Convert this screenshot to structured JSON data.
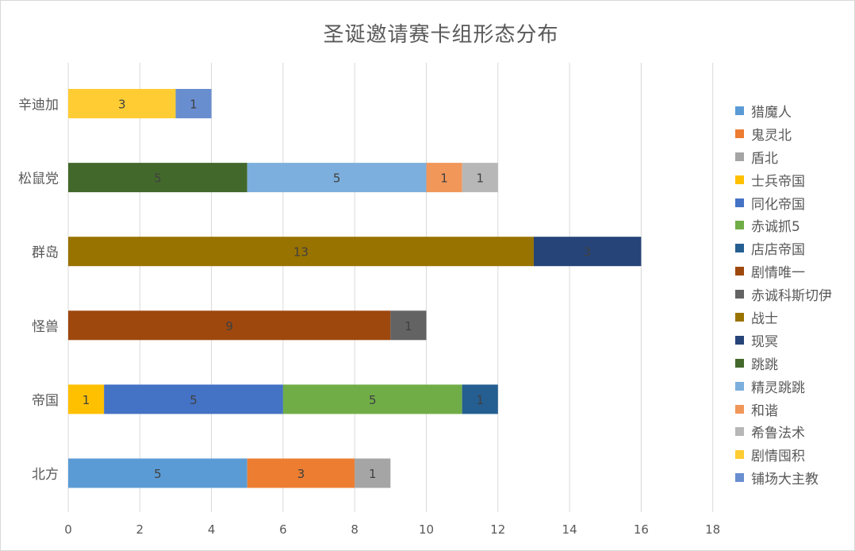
{
  "chart_data": {
    "type": "bar",
    "orientation": "horizontal",
    "stacked": true,
    "title": "圣诞邀请赛卡组形态分布",
    "xlabel": "",
    "ylabel": "",
    "xlim": [
      0,
      18
    ],
    "x_ticks": [
      "0",
      "2",
      "4",
      "6",
      "8",
      "10",
      "12",
      "14",
      "16",
      "18"
    ],
    "grid": "vertical",
    "legend_position": "right",
    "categories": [
      "北方",
      "帝国",
      "怪兽",
      "群岛",
      "松鼠党",
      "辛迪加"
    ],
    "bars": [
      {
        "category": "北方",
        "segments": [
          {
            "series": "猎魔人",
            "value": 5,
            "label": "5"
          },
          {
            "series": "鬼灵北",
            "value": 3,
            "label": "3"
          },
          {
            "series": "盾北",
            "value": 1,
            "label": "1"
          }
        ]
      },
      {
        "category": "帝国",
        "segments": [
          {
            "series": "士兵帝国",
            "value": 1,
            "label": "1"
          },
          {
            "series": "同化帝国",
            "value": 5,
            "label": "5"
          },
          {
            "series": "赤诚抓5",
            "value": 5,
            "label": "5"
          },
          {
            "series": "店店帝国",
            "value": 1,
            "label": "1"
          }
        ]
      },
      {
        "category": "怪兽",
        "segments": [
          {
            "series": "剧情唯一",
            "value": 9,
            "label": "9"
          },
          {
            "series": "赤诚科斯切伊",
            "value": 1,
            "label": "1"
          }
        ]
      },
      {
        "category": "群岛",
        "segments": [
          {
            "series": "战士",
            "value": 13,
            "label": "13"
          },
          {
            "series": "现冥",
            "value": 3,
            "label": "3"
          }
        ]
      },
      {
        "category": "松鼠党",
        "segments": [
          {
            "series": "跳跳",
            "value": 5,
            "label": "5"
          },
          {
            "series": "精灵跳跳",
            "value": 5,
            "label": "5"
          },
          {
            "series": "和谐",
            "value": 1,
            "label": "1"
          },
          {
            "series": "希鲁法术",
            "value": 1,
            "label": "1"
          }
        ]
      },
      {
        "category": "辛迪加",
        "segments": [
          {
            "series": "剧情囤积",
            "value": 3,
            "label": "3"
          },
          {
            "series": "铺场大主教",
            "value": 1,
            "label": "1"
          }
        ]
      }
    ],
    "series": [
      {
        "name": "猎魔人",
        "color": "#5b9bd5"
      },
      {
        "name": "鬼灵北",
        "color": "#ed7d31"
      },
      {
        "name": "盾北",
        "color": "#a5a5a5"
      },
      {
        "name": "士兵帝国",
        "color": "#ffc000"
      },
      {
        "name": "同化帝国",
        "color": "#4472c4"
      },
      {
        "name": "赤诚抓5",
        "color": "#70ad47"
      },
      {
        "name": "店店帝国",
        "color": "#255e91"
      },
      {
        "name": "剧情唯一",
        "color": "#9e480e"
      },
      {
        "name": "赤诚科斯切伊",
        "color": "#636363"
      },
      {
        "name": "战士",
        "color": "#997300"
      },
      {
        "name": "现冥",
        "color": "#264478"
      },
      {
        "name": "跳跳",
        "color": "#43682b"
      },
      {
        "name": "精灵跳跳",
        "color": "#7cafdd"
      },
      {
        "name": "和谐",
        "color": "#f1975a"
      },
      {
        "name": "希鲁法术",
        "color": "#b7b7b7"
      },
      {
        "name": "剧情囤积",
        "color": "#ffcd33"
      },
      {
        "name": "铺场大主教",
        "color": "#698ed0"
      }
    ]
  }
}
